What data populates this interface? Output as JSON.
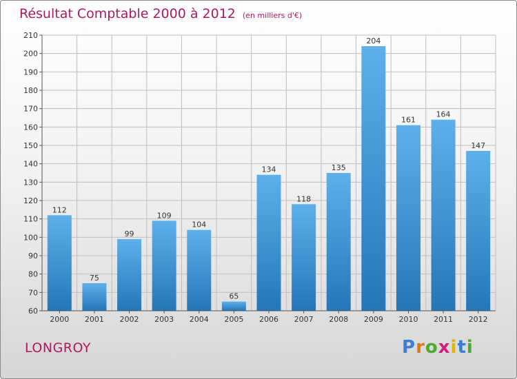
{
  "title": {
    "main": "Résultat Comptable 2000 à 2012",
    "unit": "(en milliers d'€)"
  },
  "commune": "LONGROY",
  "brand": {
    "text": "Proxiti",
    "letter_colors": [
      "#3a7fd0",
      "#e07a18",
      "#4caa2c",
      "#d01e7a",
      "#e0b400",
      "#3a7fd0",
      "#4caa2c"
    ]
  },
  "colors": {
    "bar_light": "#5eb0ea",
    "bar_dark": "#2576b8",
    "accent": "#b0185e",
    "grid": "#bdbdbd"
  },
  "chart_data": {
    "type": "bar",
    "title": "Résultat Comptable 2000 à 2012",
    "xlabel": "",
    "ylabel": "",
    "categories": [
      "2000",
      "2001",
      "2002",
      "2003",
      "2004",
      "2005",
      "2006",
      "2007",
      "2008",
      "2009",
      "2010",
      "2011",
      "2012"
    ],
    "values": [
      112,
      75,
      99,
      109,
      104,
      65,
      134,
      118,
      135,
      204,
      161,
      164,
      147
    ],
    "ylim": [
      60,
      210
    ],
    "yticks": [
      60,
      70,
      80,
      90,
      100,
      110,
      120,
      130,
      140,
      150,
      160,
      170,
      180,
      190,
      200,
      210
    ],
    "grid": true
  }
}
